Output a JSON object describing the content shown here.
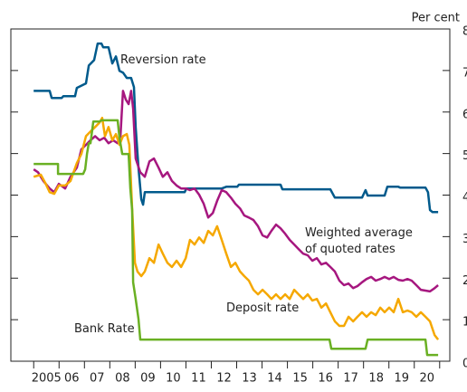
{
  "chart_data": {
    "type": "line",
    "ylabel": "Per cent",
    "xlim": [
      2004.1,
      2021.4
    ],
    "ylim": [
      0,
      8
    ],
    "yticks": [
      0,
      1,
      2,
      3,
      4,
      5,
      6,
      7,
      8
    ],
    "xtick_marks": [
      2005,
      2006,
      2007,
      2008,
      2009,
      2010,
      2011,
      2012,
      2013,
      2014,
      2015,
      2016,
      2017,
      2018,
      2019,
      2020,
      2021
    ],
    "xticks": [
      {
        "value": 2005.5,
        "label": "2005"
      },
      {
        "value": 2006.5,
        "label": "06"
      },
      {
        "value": 2007.5,
        "label": "07"
      },
      {
        "value": 2008.5,
        "label": "08"
      },
      {
        "value": 2009.5,
        "label": "09"
      },
      {
        "value": 2010.5,
        "label": "10"
      },
      {
        "value": 2011.5,
        "label": "11"
      },
      {
        "value": 2012.5,
        "label": "12"
      },
      {
        "value": 2013.5,
        "label": "13"
      },
      {
        "value": 2014.5,
        "label": "14"
      },
      {
        "value": 2015.5,
        "label": "15"
      },
      {
        "value": 2016.5,
        "label": "16"
      },
      {
        "value": 2017.5,
        "label": "17"
      },
      {
        "value": 2018.5,
        "label": "18"
      },
      {
        "value": 2019.5,
        "label": "19"
      },
      {
        "value": 2020.5,
        "label": "20"
      }
    ],
    "series": [
      {
        "name": "Reversion rate",
        "color": "#005a8c",
        "x": [
          2005.0,
          2005.63,
          2005.71,
          2006.1,
          2006.17,
          2006.63,
          2006.7,
          2007.06,
          2007.17,
          2007.38,
          2007.52,
          2007.67,
          2007.74,
          2007.95,
          2008.1,
          2008.24,
          2008.38,
          2008.52,
          2008.67,
          2008.84,
          2008.95,
          2009.02,
          2009.13,
          2009.24,
          2009.31,
          2009.38,
          2010.95,
          2011.02,
          2012.41,
          2012.59,
          2013.02,
          2013.09,
          2014.73,
          2014.8,
          2016.69,
          2016.87,
          2017.94,
          2018.08,
          2018.16,
          2018.83,
          2018.94,
          2019.37,
          2019.44,
          2020.44,
          2020.54,
          2020.62,
          2020.72,
          2020.94
        ],
        "values": [
          6.51,
          6.51,
          6.34,
          6.34,
          6.38,
          6.38,
          6.58,
          6.69,
          7.12,
          7.25,
          7.65,
          7.65,
          7.56,
          7.56,
          7.17,
          7.34,
          6.99,
          6.95,
          6.82,
          6.82,
          6.6,
          5.64,
          4.66,
          3.9,
          3.77,
          4.07,
          4.07,
          4.16,
          4.16,
          4.2,
          4.2,
          4.25,
          4.25,
          4.14,
          4.14,
          3.94,
          3.94,
          4.12,
          3.99,
          3.99,
          4.2,
          4.2,
          4.18,
          4.18,
          4.07,
          3.64,
          3.59,
          3.59
        ]
      },
      {
        "name": "Weighted average\nof quoted rates",
        "color": "#a6177f",
        "x": [
          2005.0,
          2005.17,
          2005.38,
          2005.63,
          2005.81,
          2005.99,
          2006.24,
          2006.45,
          2006.7,
          2006.88,
          2007.06,
          2007.24,
          2007.42,
          2007.6,
          2007.78,
          2007.95,
          2008.13,
          2008.31,
          2008.42,
          2008.52,
          2008.63,
          2008.74,
          2008.84,
          2008.92,
          2009.02,
          2009.2,
          2009.38,
          2009.56,
          2009.74,
          2009.92,
          2010.09,
          2010.27,
          2010.45,
          2010.63,
          2010.81,
          2010.99,
          2011.16,
          2011.34,
          2011.52,
          2011.7,
          2011.88,
          2012.06,
          2012.23,
          2012.41,
          2012.59,
          2012.77,
          2012.95,
          2013.13,
          2013.3,
          2013.48,
          2013.66,
          2013.84,
          2014.02,
          2014.2,
          2014.37,
          2014.55,
          2014.73,
          2014.91,
          2015.09,
          2015.27,
          2015.44,
          2015.62,
          2015.8,
          2015.98,
          2016.16,
          2016.34,
          2016.52,
          2016.69,
          2016.87,
          2017.05,
          2017.23,
          2017.41,
          2017.59,
          2017.76,
          2017.94,
          2018.12,
          2018.3,
          2018.48,
          2018.66,
          2018.83,
          2019.01,
          2019.19,
          2019.37,
          2019.55,
          2019.73,
          2019.9,
          2020.08,
          2020.26,
          2020.44,
          2020.62,
          2020.8,
          2020.94
        ],
        "values": [
          4.62,
          4.55,
          4.34,
          4.16,
          4.07,
          4.27,
          4.16,
          4.44,
          4.66,
          5.1,
          5.21,
          5.32,
          5.42,
          5.32,
          5.38,
          5.25,
          5.32,
          5.25,
          5.42,
          6.51,
          6.3,
          6.19,
          6.51,
          6.08,
          4.88,
          4.55,
          4.44,
          4.81,
          4.88,
          4.66,
          4.44,
          4.55,
          4.34,
          4.23,
          4.16,
          4.16,
          4.12,
          4.16,
          4.01,
          3.79,
          3.46,
          3.57,
          3.86,
          4.12,
          4.07,
          3.94,
          3.79,
          3.68,
          3.51,
          3.46,
          3.4,
          3.25,
          3.03,
          2.98,
          3.14,
          3.29,
          3.2,
          3.07,
          2.92,
          2.81,
          2.7,
          2.59,
          2.55,
          2.42,
          2.48,
          2.33,
          2.37,
          2.27,
          2.16,
          1.94,
          1.83,
          1.87,
          1.76,
          1.81,
          1.9,
          1.98,
          2.03,
          1.94,
          1.98,
          2.03,
          1.98,
          2.03,
          1.96,
          1.94,
          1.98,
          1.94,
          1.83,
          1.72,
          1.7,
          1.68,
          1.76,
          1.83
        ]
      },
      {
        "name": "Deposit rate",
        "color": "#f5a800",
        "x": [
          2005.0,
          2005.28,
          2005.46,
          2005.63,
          2005.81,
          2005.99,
          2006.24,
          2006.45,
          2006.7,
          2006.88,
          2007.06,
          2007.24,
          2007.42,
          2007.6,
          2007.7,
          2007.81,
          2007.95,
          2008.1,
          2008.24,
          2008.38,
          2008.52,
          2008.67,
          2008.77,
          2008.88,
          2008.99,
          2009.09,
          2009.24,
          2009.38,
          2009.56,
          2009.74,
          2009.92,
          2010.09,
          2010.27,
          2010.45,
          2010.63,
          2010.81,
          2010.99,
          2011.16,
          2011.34,
          2011.52,
          2011.7,
          2011.88,
          2012.06,
          2012.23,
          2012.41,
          2012.59,
          2012.77,
          2012.95,
          2013.13,
          2013.3,
          2013.48,
          2013.66,
          2013.84,
          2014.02,
          2014.2,
          2014.37,
          2014.55,
          2014.73,
          2014.91,
          2015.09,
          2015.27,
          2015.44,
          2015.62,
          2015.8,
          2015.98,
          2016.16,
          2016.34,
          2016.52,
          2016.69,
          2016.87,
          2017.05,
          2017.23,
          2017.41,
          2017.59,
          2017.76,
          2017.94,
          2018.12,
          2018.3,
          2018.48,
          2018.66,
          2018.83,
          2019.01,
          2019.19,
          2019.37,
          2019.55,
          2019.73,
          2019.9,
          2020.08,
          2020.26,
          2020.44,
          2020.62,
          2020.8,
          2020.94
        ],
        "values": [
          4.44,
          4.49,
          4.29,
          4.07,
          4.03,
          4.23,
          4.23,
          4.34,
          4.77,
          4.99,
          5.42,
          5.53,
          5.64,
          5.75,
          5.86,
          5.42,
          5.64,
          5.32,
          5.47,
          5.21,
          5.42,
          5.47,
          5.21,
          3.68,
          2.37,
          2.16,
          2.05,
          2.16,
          2.48,
          2.37,
          2.81,
          2.59,
          2.37,
          2.27,
          2.42,
          2.27,
          2.48,
          2.92,
          2.81,
          2.98,
          2.85,
          3.14,
          3.03,
          3.25,
          2.92,
          2.59,
          2.27,
          2.37,
          2.16,
          2.05,
          1.94,
          1.72,
          1.61,
          1.72,
          1.61,
          1.5,
          1.61,
          1.5,
          1.61,
          1.5,
          1.72,
          1.61,
          1.5,
          1.61,
          1.46,
          1.5,
          1.29,
          1.39,
          1.18,
          0.96,
          0.85,
          0.85,
          1.07,
          0.96,
          1.07,
          1.18,
          1.07,
          1.18,
          1.11,
          1.29,
          1.18,
          1.29,
          1.18,
          1.5,
          1.18,
          1.22,
          1.18,
          1.07,
          1.18,
          1.07,
          0.96,
          0.63,
          0.52
        ]
      },
      {
        "name": "Bank Rate",
        "color": "#6ab023",
        "x": [
          2005.0,
          2005.96,
          2005.96,
          2006.95,
          2007.03,
          2007.1,
          2007.17,
          2007.24,
          2007.35,
          2007.6,
          2007.67,
          2008.31,
          2008.38,
          2008.49,
          2008.74,
          2008.81,
          2008.88,
          2008.92,
          2009.02,
          2009.13,
          2009.2,
          2016.66,
          2016.73,
          2018.08,
          2018.16,
          2020.44,
          2020.51,
          2020.94
        ],
        "values": [
          4.75,
          4.75,
          4.51,
          4.51,
          4.62,
          4.99,
          5.25,
          5.25,
          5.77,
          5.77,
          5.8,
          5.8,
          5.38,
          4.99,
          4.99,
          4.16,
          3.64,
          1.9,
          1.5,
          1.02,
          0.52,
          0.52,
          0.3,
          0.3,
          0.52,
          0.52,
          0.15,
          0.15
        ]
      }
    ]
  }
}
